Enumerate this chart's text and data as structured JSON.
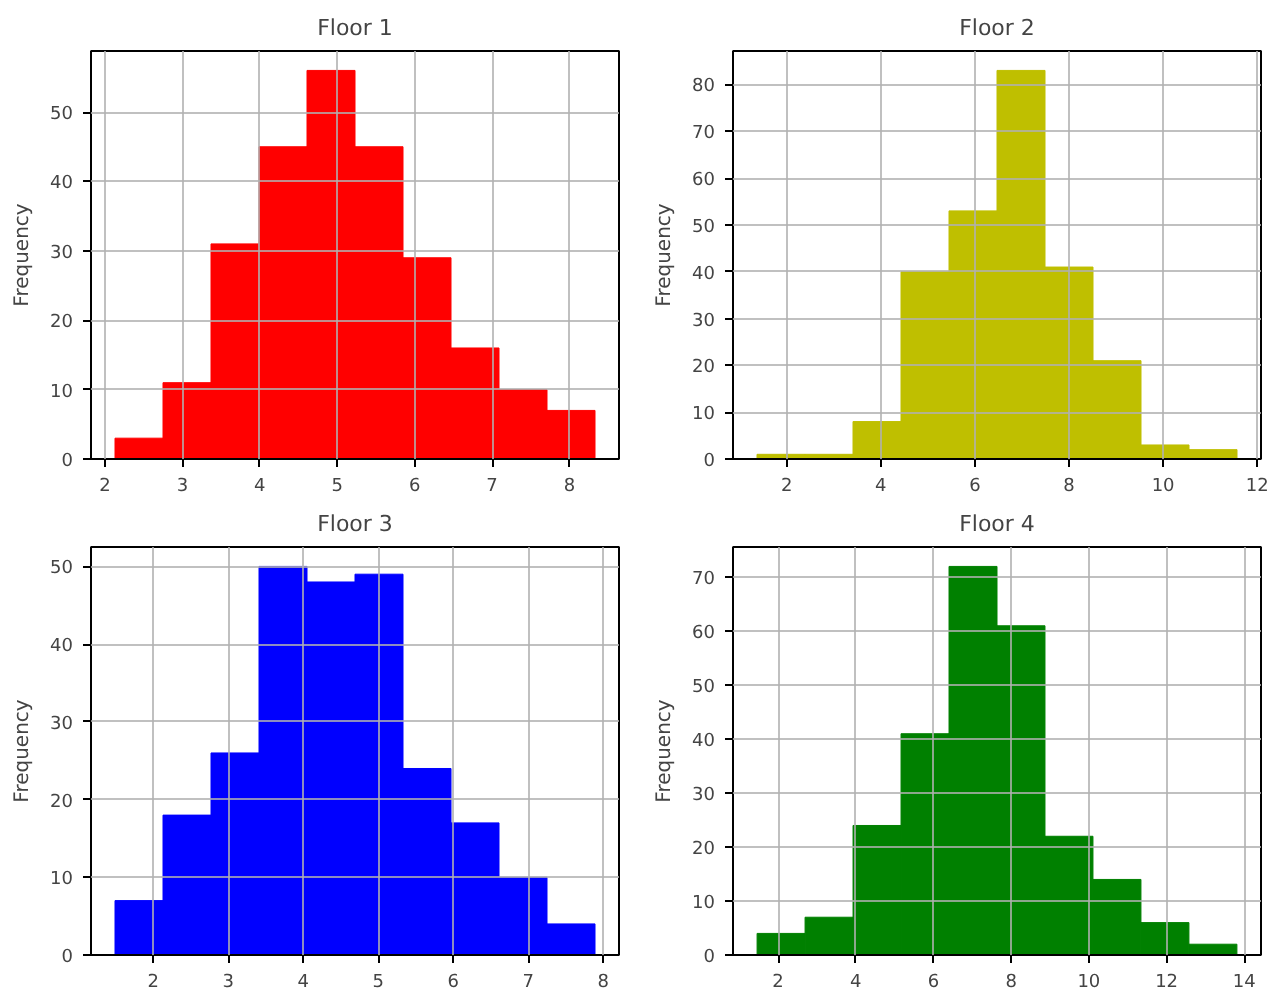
{
  "chart_data": [
    {
      "type": "histogram",
      "title": "Floor 1",
      "ylabel": "Frequency",
      "color": "#ff0000",
      "bins": [
        2.13,
        2.75,
        3.37,
        3.99,
        4.61,
        5.23,
        5.85,
        6.47,
        7.09,
        7.71,
        8.33
      ],
      "values": [
        3,
        11,
        31,
        45,
        56,
        45,
        29,
        16,
        10,
        7
      ],
      "xlim": [
        1.82,
        8.64
      ],
      "ylim": [
        0,
        58.8
      ],
      "xticks": [
        2,
        3,
        4,
        5,
        6,
        7,
        8
      ],
      "yticks": [
        0,
        10,
        20,
        30,
        40,
        50
      ],
      "grid": true
    },
    {
      "type": "histogram",
      "title": "Floor 2",
      "ylabel": "Frequency",
      "color": "#bfbf00",
      "bins": [
        1.37,
        2.39,
        3.41,
        4.43,
        5.45,
        6.47,
        7.49,
        8.51,
        9.53,
        10.55,
        11.57
      ],
      "values": [
        1,
        1,
        8,
        40,
        53,
        83,
        41,
        21,
        3,
        2
      ],
      "xlim": [
        0.86,
        12.08
      ],
      "ylim": [
        0,
        87.15
      ],
      "xticks": [
        2,
        4,
        6,
        8,
        10,
        12
      ],
      "yticks": [
        0,
        10,
        20,
        30,
        40,
        50,
        60,
        70,
        80
      ],
      "grid": true
    },
    {
      "type": "histogram",
      "title": "Floor 3",
      "ylabel": "Frequency",
      "color": "#0000ff",
      "bins": [
        1.49,
        2.13,
        2.77,
        3.41,
        4.05,
        4.69,
        5.33,
        5.97,
        6.61,
        7.25,
        7.89
      ],
      "values": [
        7,
        18,
        26,
        50,
        48,
        49,
        24,
        17,
        10,
        4
      ],
      "xlim": [
        1.17,
        8.21
      ],
      "ylim": [
        0,
        52.5
      ],
      "xticks": [
        2,
        3,
        4,
        5,
        6,
        7,
        8
      ],
      "yticks": [
        0,
        10,
        20,
        30,
        40,
        50
      ],
      "grid": true
    },
    {
      "type": "histogram",
      "title": "Floor 4",
      "ylabel": "Frequency",
      "color": "#008000",
      "bins": [
        1.46,
        2.695,
        3.93,
        5.165,
        6.4,
        7.635,
        8.87,
        10.105,
        11.34,
        12.575,
        13.81
      ],
      "values": [
        4,
        7,
        24,
        41,
        72,
        61,
        22,
        14,
        6,
        2
      ],
      "xlim": [
        0.84,
        14.43
      ],
      "ylim": [
        0,
        75.6
      ],
      "xticks": [
        2,
        4,
        6,
        8,
        10,
        12,
        14
      ],
      "yticks": [
        0,
        10,
        20,
        30,
        40,
        50,
        60,
        70
      ],
      "grid": true
    }
  ]
}
